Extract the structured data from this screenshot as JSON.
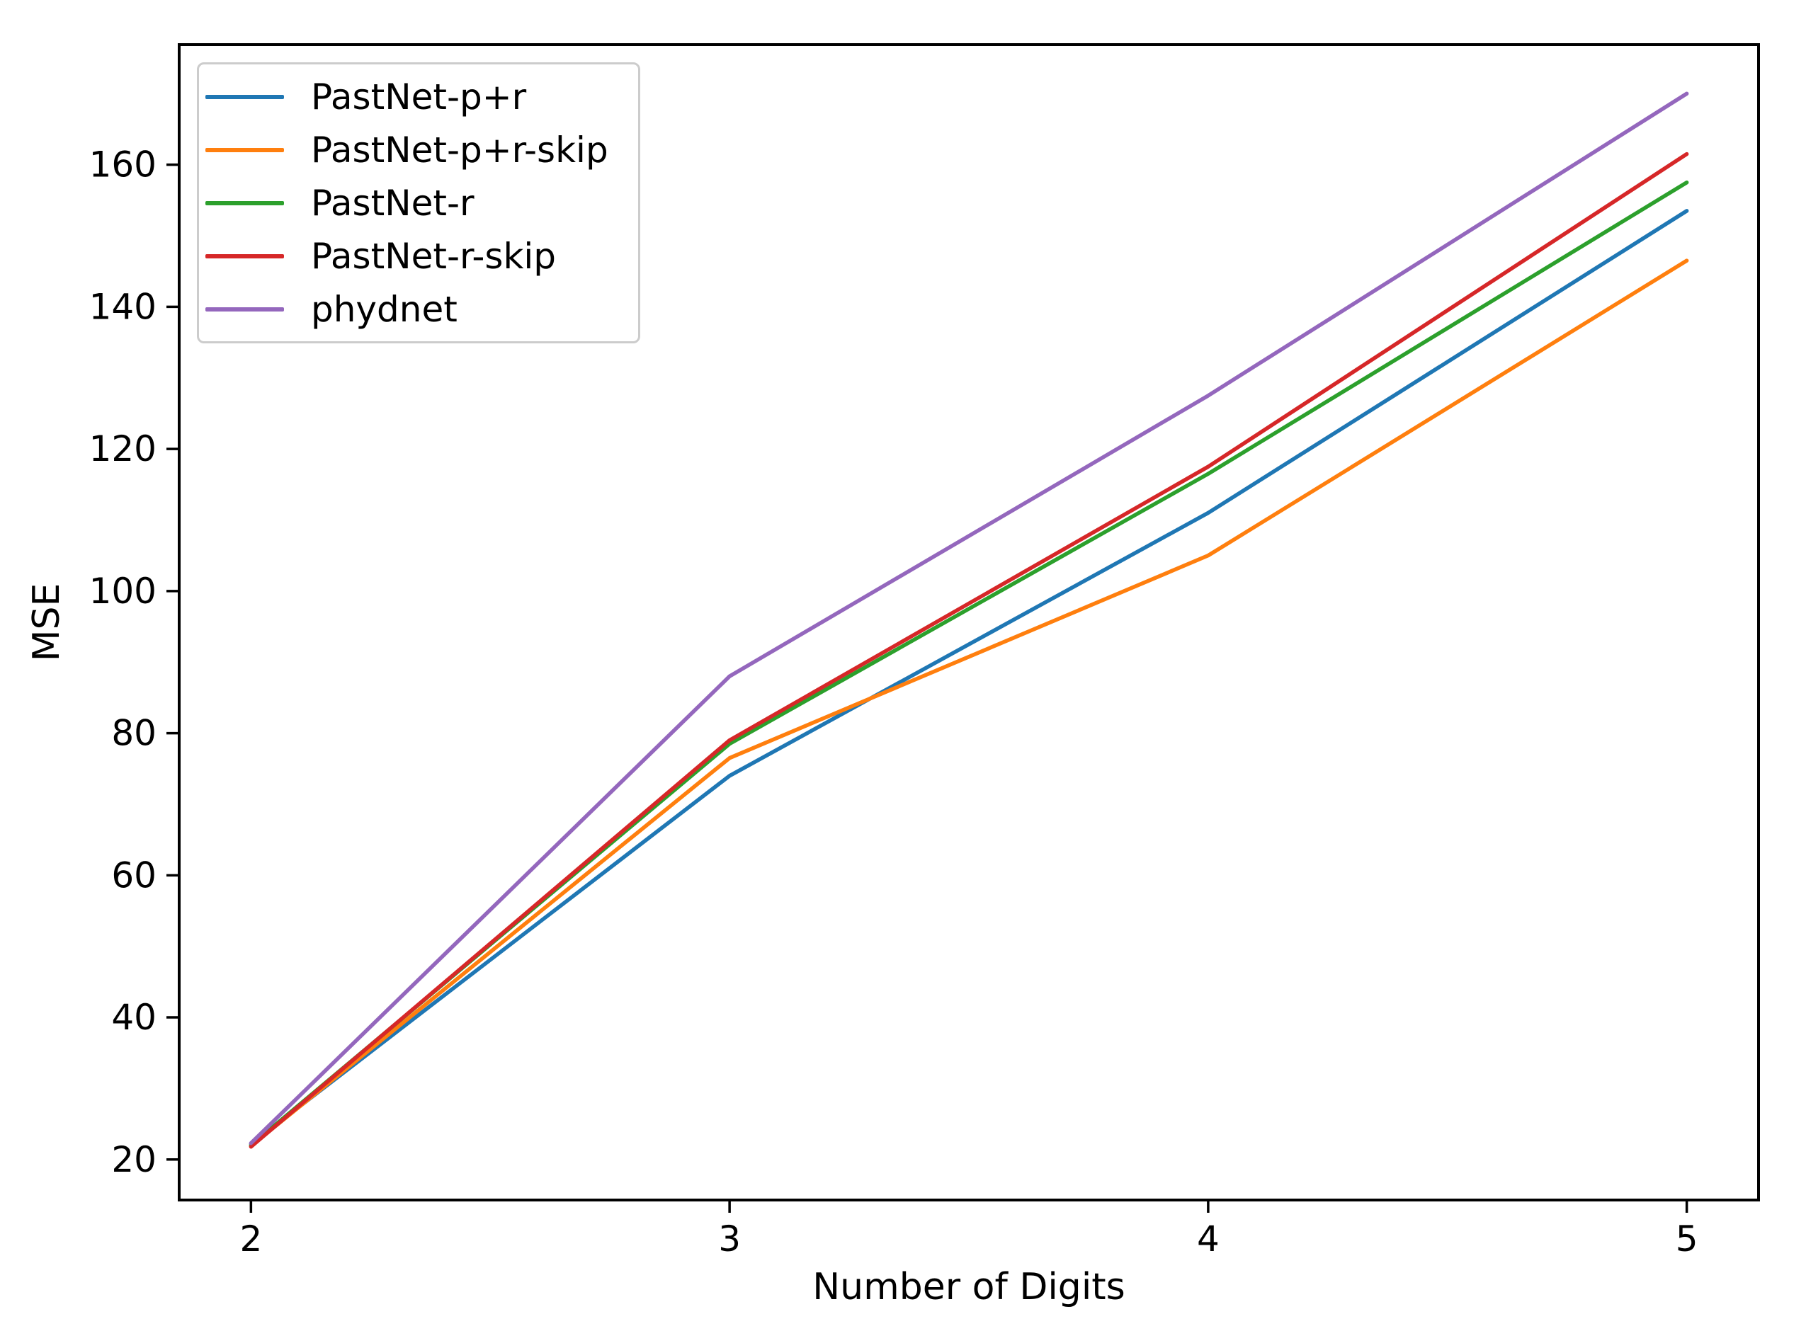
{
  "figure": {
    "background": "#ffffff",
    "axis_color": "#000000",
    "tick_label_color": "#000000"
  },
  "chart_data": {
    "type": "line",
    "title": "",
    "xlabel": "Number of Digits",
    "ylabel": "MSE",
    "x": [
      2,
      3,
      4,
      5
    ],
    "series": [
      {
        "name": "PastNet-p+r",
        "color": "#1f77b4",
        "values": [
          22.2,
          74.0,
          111.0,
          153.5
        ]
      },
      {
        "name": "PastNet-p+r-skip",
        "color": "#ff7f0e",
        "values": [
          21.9,
          76.5,
          105.0,
          146.5
        ]
      },
      {
        "name": "PastNet-r",
        "color": "#2ca02c",
        "values": [
          22.0,
          78.5,
          116.5,
          157.5
        ]
      },
      {
        "name": "PastNet-r-skip",
        "color": "#d62728",
        "values": [
          21.8,
          79.0,
          117.5,
          161.5
        ]
      },
      {
        "name": "phydnet",
        "color": "#9467bd",
        "values": [
          22.3,
          88.0,
          127.5,
          170.0
        ]
      }
    ],
    "x_ticks": [
      "2",
      "3",
      "4",
      "5"
    ],
    "x_tick_values": [
      2,
      3,
      4,
      5
    ],
    "y_ticks": [
      "20",
      "40",
      "60",
      "80",
      "100",
      "120",
      "140",
      "160"
    ],
    "y_tick_values": [
      20,
      40,
      60,
      80,
      100,
      120,
      140,
      160
    ],
    "xlim": [
      1.85,
      5.15
    ],
    "ylim": [
      14.3,
      176.9
    ],
    "grid": false,
    "legend_position": "upper left"
  }
}
